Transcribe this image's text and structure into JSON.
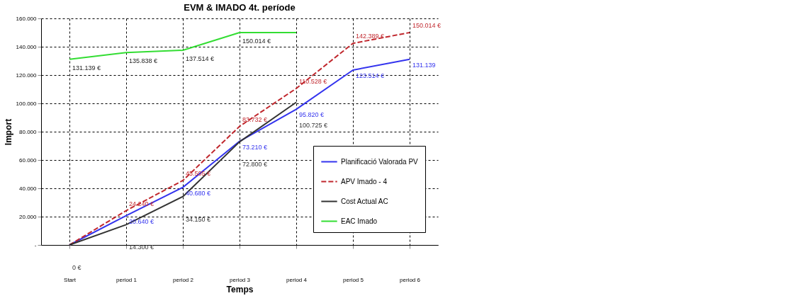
{
  "chart_data": {
    "type": "line",
    "title": "EVM & IMADO 4t. període",
    "xlabel": "Temps",
    "ylabel": "Import",
    "categories": [
      "Start",
      "period 1",
      "period 2",
      "period 3",
      "period 4",
      "period 5",
      "period 6"
    ],
    "series": [
      {
        "name": "Planificació Valorada PV",
        "color": "#3333ee",
        "line_style": "solid",
        "values": [
          0,
          20640,
          40680,
          73210,
          95820,
          123514,
          131139
        ],
        "value_labels": [
          null,
          "20.640 €",
          "40.680 €",
          "73.210 €",
          "95.820 €",
          "123.514 €",
          "131.139"
        ]
      },
      {
        "name": "APV Imado - 4",
        "color": "#c0272d",
        "line_style": "dashed",
        "values": [
          0,
          24240,
          45505,
          83732,
          110528,
          142389,
          150014
        ],
        "value_labels": [
          null,
          "24.240 €",
          "45.505 €",
          "83.732 €",
          "110.528 €",
          "142.389 €",
          "150.014 €"
        ]
      },
      {
        "name": "Cost Actual AC",
        "color": "#333333",
        "line_style": "solid",
        "values": [
          0,
          14300,
          34150,
          72800,
          100725,
          null,
          null
        ],
        "value_labels": [
          "0 €",
          "14.300 €",
          "34.150 €",
          "72.800 €",
          "100.725 €",
          null,
          null
        ]
      },
      {
        "name": "EAC Imado",
        "color": "#33dd33",
        "line_style": "solid",
        "values": [
          131139,
          135838,
          137514,
          150014,
          150014,
          null,
          null
        ],
        "value_labels": [
          "131.139 €",
          "135.838 €",
          "137.514 €",
          "150.014 €",
          null,
          null,
          null
        ]
      }
    ],
    "ylim": [
      0,
      160000
    ],
    "yticks": [
      {
        "value": 0,
        "label": "-"
      },
      {
        "value": 20000,
        "label": "20.000"
      },
      {
        "value": 40000,
        "label": "40.000"
      },
      {
        "value": 60000,
        "label": "60.000"
      },
      {
        "value": 80000,
        "label": "80.000"
      },
      {
        "value": 100000,
        "label": "100.000"
      },
      {
        "value": 120000,
        "label": "120.000"
      },
      {
        "value": 140000,
        "label": "140.000"
      },
      {
        "value": 160000,
        "label": "160.000"
      }
    ],
    "grid": true,
    "legend": "bottom right",
    "marker": "none"
  }
}
